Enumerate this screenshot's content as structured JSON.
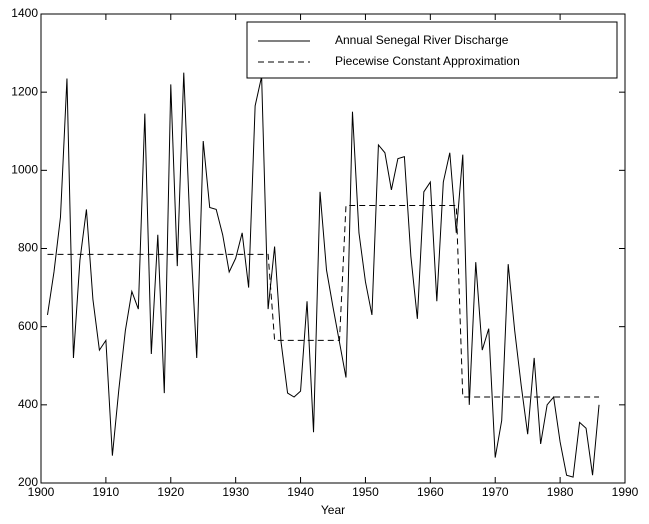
{
  "chart_data": {
    "type": "line",
    "xlabel": "Year",
    "xlim": [
      1900,
      1990
    ],
    "xticks": [
      1900,
      1910,
      1920,
      1930,
      1940,
      1950,
      1960,
      1970,
      1980,
      1990
    ],
    "ylim": [
      200,
      1400
    ],
    "yticks": [
      200,
      400,
      600,
      800,
      1000,
      1200,
      1400
    ],
    "legend": "upper right",
    "series": [
      {
        "name": "Annual Senegal River Discharge",
        "color": "#000000",
        "dashed": false,
        "x": [
          1901,
          1902,
          1903,
          1904,
          1905,
          1906,
          1907,
          1908,
          1909,
          1910,
          1911,
          1912,
          1913,
          1914,
          1915,
          1916,
          1917,
          1918,
          1919,
          1920,
          1921,
          1922,
          1923,
          1924,
          1925,
          1926,
          1927,
          1928,
          1929,
          1930,
          1931,
          1932,
          1933,
          1934,
          1935,
          1936,
          1937,
          1938,
          1939,
          1940,
          1941,
          1942,
          1943,
          1944,
          1945,
          1946,
          1947,
          1948,
          1949,
          1950,
          1951,
          1952,
          1953,
          1954,
          1955,
          1956,
          1957,
          1958,
          1959,
          1960,
          1961,
          1962,
          1963,
          1964,
          1965,
          1966,
          1967,
          1968,
          1969,
          1970,
          1971,
          1972,
          1973,
          1974,
          1975,
          1976,
          1977,
          1978,
          1979,
          1980,
          1981,
          1982,
          1983,
          1984,
          1985,
          1986
        ],
        "values": [
          630,
          740,
          880,
          1235,
          520,
          770,
          900,
          670,
          540,
          565,
          270,
          440,
          590,
          690,
          645,
          1145,
          530,
          835,
          430,
          1220,
          755,
          1250,
          840,
          520,
          1075,
          905,
          900,
          835,
          740,
          775,
          840,
          700,
          1165,
          1240,
          645,
          805,
          560,
          430,
          420,
          435,
          665,
          330,
          945,
          745,
          650,
          560,
          470,
          1150,
          840,
          715,
          630,
          1065,
          1045,
          950,
          1030,
          1035,
          780,
          620,
          945,
          970,
          665,
          970,
          1045,
          840,
          1040,
          400,
          765,
          540,
          595,
          265,
          360,
          760,
          590,
          450,
          325,
          520,
          300,
          400,
          420,
          305,
          220,
          215,
          355,
          340,
          220,
          400
        ]
      },
      {
        "name": "Piecewise Constant Approximation",
        "color": "#000000",
        "dashed": true,
        "x": [
          1901,
          1935,
          1936,
          1946,
          1947,
          1964,
          1965,
          1986
        ],
        "values": [
          785,
          785,
          565,
          565,
          910,
          910,
          420,
          420
        ]
      }
    ]
  }
}
